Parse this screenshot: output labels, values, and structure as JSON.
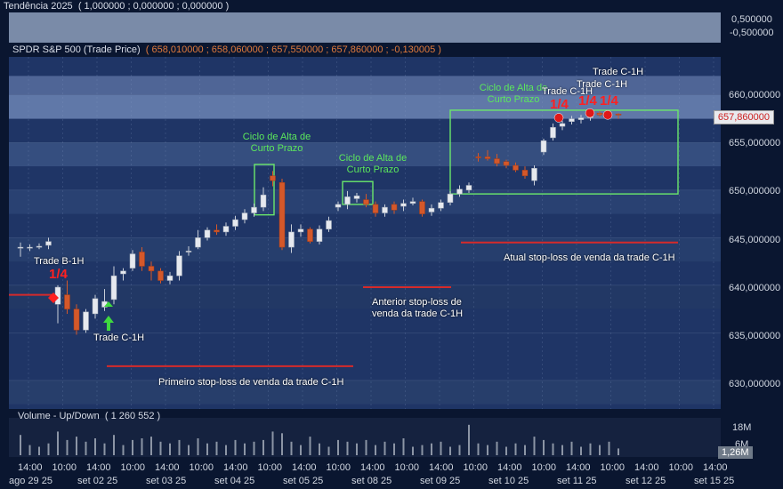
{
  "top_indicator": {
    "label": "Tendência 2025",
    "values": "( 1,000000 ; 0,000000 ; 0,000000 )",
    "axis_ticks": [
      "0,500000",
      "-0,500000"
    ]
  },
  "instrument": {
    "label": "SPDR S&P 500 (Trade Price)",
    "ohlc": "( 658,010000 ; 658,060000 ; 657,550000 ; 657,860000 ; -0,130005 )",
    "last_price": "657,860000"
  },
  "price_axis": {
    "ticks": [
      "660,000000",
      "655,000000",
      "650,000000",
      "645,000000",
      "640,000000",
      "635,000000",
      "630,000000"
    ]
  },
  "annotations": {
    "trade_b": "Trade B-1H",
    "trade_b_fraction": "1/4",
    "trade_c_bottom": "Trade C-1H",
    "cycle_1": "Ciclo de Alta de Curto Prazo",
    "cycle_2": "Ciclo de Alta de Curto Prazo",
    "cycle_3": "Ciclo de Alta de Curto Prazo",
    "trade_c_1": "Trade C-1H",
    "trade_c_2": "Trade C-1H",
    "trade_c_3": "Trade C-1H",
    "frac_1": "1/4",
    "frac_2": "1/4",
    "frac_3": "1/4",
    "stop_first": "Primeiro stop-loss de venda da trade C-1H",
    "stop_previous": "Anterior stop-loss de venda da trade C-1H",
    "stop_current": "Atual stop-loss de venda da trade C-1H"
  },
  "volume": {
    "label": "Volume - Up/Down",
    "value": "( 1 260 552 )",
    "axis_ticks": [
      "18M",
      "6M"
    ],
    "last_value": "1,26M"
  },
  "time_axis": {
    "hours": [
      "14:00",
      "10:00",
      "14:00",
      "10:00",
      "14:00",
      "10:00",
      "14:00",
      "10:00",
      "14:00",
      "10:00",
      "14:00",
      "10:00",
      "14:00",
      "10:00",
      "14:00",
      "10:00",
      "14:00",
      "10:00",
      "14:00",
      "10:00",
      "14:00"
    ],
    "dates": [
      "ago 29 25",
      "set 02 25",
      "set 03 25",
      "set 04 25",
      "set 05 25",
      "set 08 25",
      "set 09 25",
      "set 10 25",
      "set 11 25",
      "set 12 25",
      "set 15 25"
    ]
  },
  "chart_data": {
    "type": "candlestick",
    "title": "SPDR S&P 500 (Trade Price)",
    "y_range": [
      627,
      664
    ],
    "candles": [
      {
        "o": 644,
        "h": 644.5,
        "l": 643,
        "c": 644
      },
      {
        "o": 644,
        "h": 644.3,
        "l": 643.6,
        "c": 644
      },
      {
        "o": 644,
        "h": 644.4,
        "l": 643.8,
        "c": 644.1
      },
      {
        "o": 644.2,
        "h": 645,
        "l": 643.8,
        "c": 644.6
      },
      {
        "o": 638,
        "h": 640,
        "l": 636,
        "c": 639.8
      },
      {
        "o": 639,
        "h": 640.5,
        "l": 637,
        "c": 637.5
      },
      {
        "o": 637.5,
        "h": 638,
        "l": 634.8,
        "c": 635.3
      },
      {
        "o": 635.3,
        "h": 637.5,
        "l": 635,
        "c": 637.2
      },
      {
        "o": 637,
        "h": 639,
        "l": 636.5,
        "c": 638.6
      },
      {
        "o": 637.7,
        "h": 639.6,
        "l": 637.3,
        "c": 638.3
      },
      {
        "o": 638.5,
        "h": 642,
        "l": 638,
        "c": 641
      },
      {
        "o": 641.2,
        "h": 641.8,
        "l": 640.5,
        "c": 641.5
      },
      {
        "o": 641.8,
        "h": 643.7,
        "l": 641.5,
        "c": 643.3
      },
      {
        "o": 643.5,
        "h": 644,
        "l": 641.5,
        "c": 642
      },
      {
        "o": 642,
        "h": 642.5,
        "l": 640.5,
        "c": 641.5
      },
      {
        "o": 641.5,
        "h": 641.8,
        "l": 640.2,
        "c": 640.5
      },
      {
        "o": 640.5,
        "h": 641.4,
        "l": 640.1,
        "c": 641
      },
      {
        "o": 641,
        "h": 643.6,
        "l": 640.5,
        "c": 643.1
      },
      {
        "o": 643.5,
        "h": 644.1,
        "l": 643.1,
        "c": 643.6
      },
      {
        "o": 644,
        "h": 645.8,
        "l": 643.8,
        "c": 645
      },
      {
        "o": 645,
        "h": 646.1,
        "l": 644.7,
        "c": 645.8
      },
      {
        "o": 645.8,
        "h": 646.4,
        "l": 645.3,
        "c": 645.6
      },
      {
        "o": 645.6,
        "h": 646.6,
        "l": 645.2,
        "c": 646.2
      },
      {
        "o": 646.2,
        "h": 647.3,
        "l": 645.8,
        "c": 646.9
      },
      {
        "o": 646.9,
        "h": 648,
        "l": 646.5,
        "c": 647.6
      },
      {
        "o": 647.6,
        "h": 648.6,
        "l": 647.2,
        "c": 648.2
      },
      {
        "o": 648.2,
        "h": 650.3,
        "l": 647.8,
        "c": 649.5
      },
      {
        "o": 651.5,
        "h": 652,
        "l": 650.4,
        "c": 651
      },
      {
        "o": 650.8,
        "h": 651.2,
        "l": 643.7,
        "c": 644
      },
      {
        "o": 644,
        "h": 646.4,
        "l": 643.4,
        "c": 645.6
      },
      {
        "o": 645.6,
        "h": 646.4,
        "l": 645.1,
        "c": 645.9
      },
      {
        "o": 645.9,
        "h": 646.1,
        "l": 644.4,
        "c": 644.6
      },
      {
        "o": 644.6,
        "h": 646.3,
        "l": 644.3,
        "c": 645.9
      },
      {
        "o": 645.9,
        "h": 647.2,
        "l": 645.6,
        "c": 646.8
      },
      {
        "o": 648.2,
        "h": 648.8,
        "l": 647.8,
        "c": 648.5
      },
      {
        "o": 648.5,
        "h": 649.9,
        "l": 648,
        "c": 649.3
      },
      {
        "o": 649.1,
        "h": 649.7,
        "l": 648.7,
        "c": 649.4
      },
      {
        "o": 649,
        "h": 649.6,
        "l": 648.2,
        "c": 648.5
      },
      {
        "o": 648.5,
        "h": 648.8,
        "l": 647.2,
        "c": 647.6
      },
      {
        "o": 647.6,
        "h": 648.5,
        "l": 647.2,
        "c": 648.2
      },
      {
        "o": 648.5,
        "h": 648.8,
        "l": 647.5,
        "c": 647.9
      },
      {
        "o": 648.3,
        "h": 649,
        "l": 647.8,
        "c": 648.6
      },
      {
        "o": 648.6,
        "h": 649.2,
        "l": 648.4,
        "c": 648.8
      },
      {
        "o": 648.8,
        "h": 649,
        "l": 647.2,
        "c": 647.5
      },
      {
        "o": 647.7,
        "h": 648.5,
        "l": 647.3,
        "c": 648.1
      },
      {
        "o": 648.1,
        "h": 649,
        "l": 647.8,
        "c": 648.7
      },
      {
        "o": 648.7,
        "h": 649.9,
        "l": 648.4,
        "c": 649.6
      },
      {
        "o": 649.6,
        "h": 650.5,
        "l": 649.3,
        "c": 650.1
      },
      {
        "o": 650,
        "h": 650.8,
        "l": 649.7,
        "c": 650.5
      },
      {
        "o": 653.5,
        "h": 653.9,
        "l": 653,
        "c": 653.4
      },
      {
        "o": 653.5,
        "h": 654.2,
        "l": 653.1,
        "c": 653.3
      },
      {
        "o": 653.3,
        "h": 653.8,
        "l": 652.5,
        "c": 652.8
      },
      {
        "o": 653,
        "h": 653.2,
        "l": 652.3,
        "c": 652.6
      },
      {
        "o": 652.6,
        "h": 652.9,
        "l": 651.9,
        "c": 652.1
      },
      {
        "o": 652.1,
        "h": 652.5,
        "l": 651.2,
        "c": 651.5
      },
      {
        "o": 651,
        "h": 652.6,
        "l": 650.5,
        "c": 652.3
      },
      {
        "o": 654,
        "h": 655.4,
        "l": 653.7,
        "c": 655.2
      },
      {
        "o": 655.5,
        "h": 657,
        "l": 655.2,
        "c": 656.6
      },
      {
        "o": 656.7,
        "h": 657.3,
        "l": 656.3,
        "c": 657
      },
      {
        "o": 657.2,
        "h": 657.8,
        "l": 656.9,
        "c": 657.5
      },
      {
        "o": 657.4,
        "h": 657.9,
        "l": 657,
        "c": 657.6
      },
      {
        "o": 657.6,
        "h": 658.4,
        "l": 657.3,
        "c": 658.1
      },
      {
        "o": 658.1,
        "h": 658.3,
        "l": 657.7,
        "c": 657.9
      },
      {
        "o": 657.9,
        "h": 658.2,
        "l": 657.6,
        "c": 657.8
      },
      {
        "o": 658,
        "h": 658.1,
        "l": 657.5,
        "c": 657.9
      }
    ],
    "volume": [
      60,
      30,
      25,
      35,
      70,
      45,
      55,
      40,
      50,
      35,
      60,
      30,
      45,
      50,
      55,
      40,
      35,
      45,
      30,
      50,
      35,
      40,
      30,
      45,
      35,
      40,
      45,
      70,
      65,
      40,
      30,
      55,
      35,
      25,
      45,
      40,
      35,
      45,
      30,
      40,
      35,
      50,
      25,
      30,
      35,
      40,
      25,
      30,
      90,
      35,
      30,
      40,
      25,
      35,
      30,
      55,
      45,
      35,
      30,
      40,
      25,
      35,
      30,
      40,
      20
    ],
    "stop_lines": [
      {
        "label": "Primeiro stop-loss de venda da trade C-1H",
        "y": 631.5
      },
      {
        "label": "Anterior stop-loss de venda da trade C-1H",
        "y": 639.8
      },
      {
        "label": "Atual stop-loss de venda da trade C-1H",
        "y": 644.5
      }
    ]
  }
}
